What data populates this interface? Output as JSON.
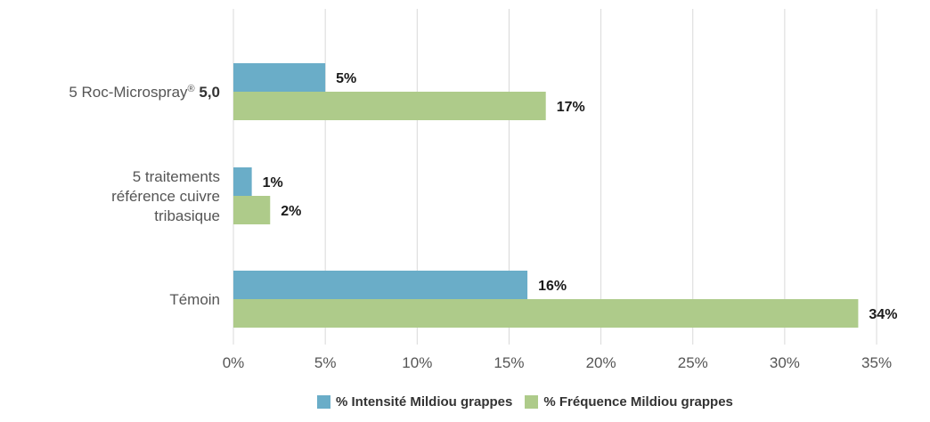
{
  "chart_data": {
    "type": "bar",
    "orientation": "horizontal",
    "categories": [
      "5 Roc-Microspray® 5,0",
      "5 traitements référence cuivre tribasique",
      "Témoin"
    ],
    "category_lines": [
      [
        {
          "text": "5 Roc-Microspray",
          "sup": "®",
          "bold": " 5,0"
        }
      ],
      [
        {
          "text": "5 traitements"
        },
        {
          "text": "référence cuivre"
        },
        {
          "text": "tribasique"
        }
      ],
      [
        {
          "text": "Témoin"
        }
      ]
    ],
    "series": [
      {
        "name": "% Intensité Mildiou grappes",
        "values": [
          5,
          1,
          16
        ],
        "labels": [
          "5%",
          "1%",
          "16%"
        ],
        "color": "#6aadc8"
      },
      {
        "name": "% Fréquence Mildiou grappes",
        "values": [
          17,
          2,
          34
        ],
        "labels": [
          "17%",
          "2%",
          "34%"
        ],
        "color": "#aecb8a"
      }
    ],
    "xlim": [
      0,
      35
    ],
    "xticks": [
      0,
      5,
      10,
      15,
      20,
      25,
      30,
      35
    ],
    "xtick_labels": [
      "0%",
      "5%",
      "10%",
      "15%",
      "20%",
      "25%",
      "30%",
      "35%"
    ],
    "grid": true,
    "legend_position": "bottom",
    "title": "",
    "xlabel": "",
    "ylabel": ""
  }
}
